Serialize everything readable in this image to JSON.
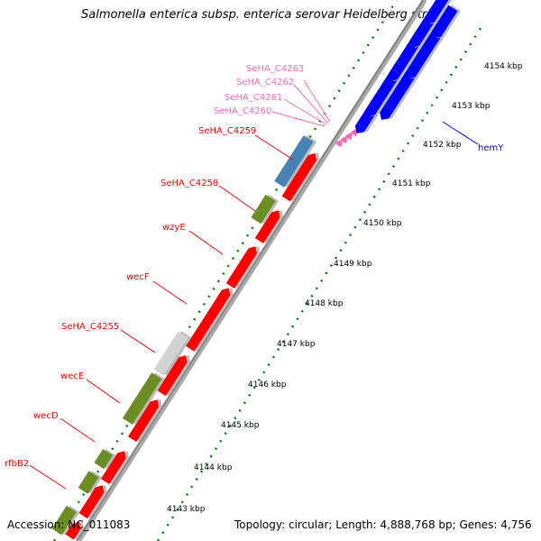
{
  "title": "Salmonella enterica subsp. enterica serovar Heidelberg str. ...",
  "footer": {
    "accession": "Accession: NC_011083",
    "summary": "Topology: circular; Length: 4,888,768 bp; Genes: 4,756"
  },
  "colors": {
    "forward_gene": "#ff0000",
    "reverse_gene": "#0000ff",
    "pseudo_gene": "#d3d3d3",
    "rna_gene": "#6b8e23",
    "steelblue_gene": "#4682b4",
    "small_genes": "#ff69b4",
    "backbone": "#808080",
    "ticks": "#008000"
  },
  "ticks": [
    "4143 kbp",
    "4144 kbp",
    "4145 kbp",
    "4146 kbp",
    "4147 kbp",
    "4148 kbp",
    "4149 kbp",
    "4150 kbp",
    "4151 kbp",
    "4152 kbp",
    "4153 kbp",
    "4154 kbp"
  ],
  "gene_labels": [
    {
      "name": "SeHA_C4263",
      "color": "#ff69b4"
    },
    {
      "name": "SeHA_C4262",
      "color": "#ff69b4"
    },
    {
      "name": "SeHA_C4261",
      "color": "#ff69b4"
    },
    {
      "name": "SeHA_C4260",
      "color": "#ff69b4"
    },
    {
      "name": "SeHA_C4259",
      "color": "#ff0000"
    },
    {
      "name": "SeHA_C4258",
      "color": "#ff0000"
    },
    {
      "name": "wzyE",
      "color": "#ff0000"
    },
    {
      "name": "wecF",
      "color": "#ff0000"
    },
    {
      "name": "SeHA_C4255",
      "color": "#ff0000"
    },
    {
      "name": "wecE",
      "color": "#ff0000"
    },
    {
      "name": "wecD",
      "color": "#ff0000"
    },
    {
      "name": "rfbB2",
      "color": "#ff0000"
    },
    {
      "name": "hemY",
      "color": "#0000ff"
    }
  ]
}
